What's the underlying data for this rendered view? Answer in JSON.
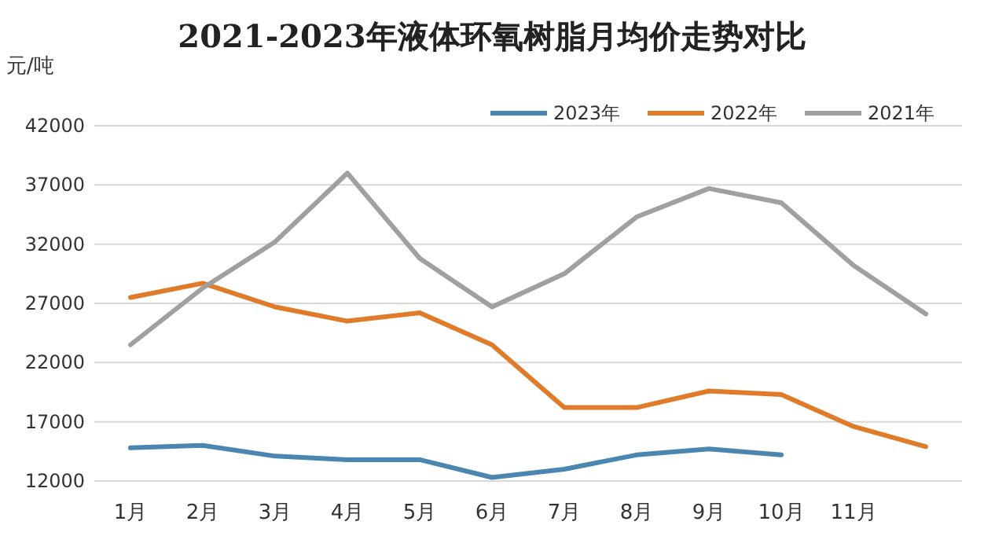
{
  "chart_data": {
    "type": "line",
    "title": "2021-2023年液体环氧树脂月均价走势对比",
    "ylabel": "元/吨",
    "categories": [
      "1月",
      "2月",
      "3月",
      "4月",
      "5月",
      "6月",
      "7月",
      "8月",
      "9月",
      "10月",
      "11月",
      null
    ],
    "series": [
      {
        "name": "2023年",
        "color": "#4a86b0",
        "values": [
          14800,
          15000,
          14100,
          13800,
          13800,
          12300,
          13000,
          14200,
          14700,
          14200,
          null,
          null
        ]
      },
      {
        "name": "2022年",
        "color": "#e07b2a",
        "values": [
          27500,
          28700,
          26700,
          25500,
          26200,
          23500,
          18200,
          18200,
          19600,
          19300,
          16600,
          14900
        ]
      },
      {
        "name": "2021年",
        "color": "#a0a0a0",
        "values": [
          23500,
          28300,
          32200,
          38000,
          30800,
          26700,
          29500,
          34300,
          36700,
          35500,
          30200,
          26100
        ]
      }
    ],
    "ylim": [
      12000,
      42000
    ],
    "yticks": [
      12000,
      17000,
      22000,
      27000,
      32000,
      37000,
      42000
    ],
    "grid": "y",
    "legend": "top right"
  }
}
